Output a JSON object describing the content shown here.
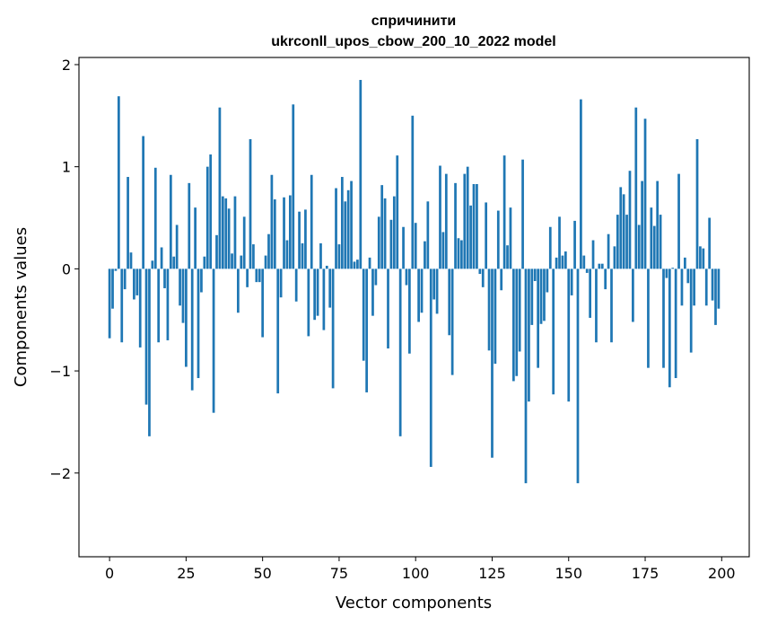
{
  "chart_data": {
    "type": "bar",
    "title": "спричинити",
    "subtitle": "ukrconll_upos_cbow_200_10_2022 model",
    "xlabel": "Vector components",
    "ylabel": "Components values",
    "xlim": [
      -10,
      209
    ],
    "ylim": [
      -2.82,
      2.07
    ],
    "x_ticks": [
      0,
      25,
      50,
      75,
      100,
      125,
      150,
      175,
      200
    ],
    "x_tick_labels": [
      "0",
      "25",
      "50",
      "75",
      "100",
      "125",
      "150",
      "175",
      "200"
    ],
    "y_ticks": [
      -2,
      -1,
      0,
      1,
      2
    ],
    "y_tick_labels": [
      "−2",
      "−1",
      "0",
      "1",
      "2"
    ],
    "grid": false,
    "bar_color": "#1f77b4",
    "x": [
      0,
      1,
      2,
      3,
      4,
      5,
      6,
      7,
      8,
      9,
      10,
      11,
      12,
      13,
      14,
      15,
      16,
      17,
      18,
      19,
      20,
      21,
      22,
      23,
      24,
      25,
      26,
      27,
      28,
      29,
      30,
      31,
      32,
      33,
      34,
      35,
      36,
      37,
      38,
      39,
      40,
      41,
      42,
      43,
      44,
      45,
      46,
      47,
      48,
      49,
      50,
      51,
      52,
      53,
      54,
      55,
      56,
      57,
      58,
      59,
      60,
      61,
      62,
      63,
      64,
      65,
      66,
      67,
      68,
      69,
      70,
      71,
      72,
      73,
      74,
      75,
      76,
      77,
      78,
      79,
      80,
      81,
      82,
      83,
      84,
      85,
      86,
      87,
      88,
      89,
      90,
      91,
      92,
      93,
      94,
      95,
      96,
      97,
      98,
      99,
      100,
      101,
      102,
      103,
      104,
      105,
      106,
      107,
      108,
      109,
      110,
      111,
      112,
      113,
      114,
      115,
      116,
      117,
      118,
      119,
      120,
      121,
      122,
      123,
      124,
      125,
      126,
      127,
      128,
      129,
      130,
      131,
      132,
      133,
      134,
      135,
      136,
      137,
      138,
      139,
      140,
      141,
      142,
      143,
      144,
      145,
      146,
      147,
      148,
      149,
      150,
      151,
      152,
      153,
      154,
      155,
      156,
      157,
      158,
      159,
      160,
      161,
      162,
      163,
      164,
      165,
      166,
      167,
      168,
      169,
      170,
      171,
      172,
      173,
      174,
      175,
      176,
      177,
      178,
      179,
      180,
      181,
      182,
      183,
      184,
      185,
      186,
      187,
      188,
      189,
      190,
      191,
      192,
      193,
      194,
      195,
      196,
      197,
      198,
      199
    ],
    "values": [
      -0.68,
      -0.39,
      -0.02,
      1.69,
      -0.72,
      -0.2,
      0.9,
      0.16,
      -0.3,
      -0.26,
      -0.77,
      1.3,
      -1.33,
      -1.64,
      0.08,
      0.99,
      -0.72,
      0.21,
      -0.19,
      -0.7,
      0.92,
      0.12,
      0.43,
      -0.36,
      -0.53,
      -0.96,
      0.84,
      -1.19,
      0.6,
      -1.07,
      -0.23,
      0.12,
      1.0,
      1.12,
      -1.41,
      0.33,
      1.58,
      0.71,
      0.69,
      0.59,
      0.15,
      0.71,
      -0.43,
      0.13,
      0.51,
      -0.18,
      1.27,
      0.24,
      -0.13,
      -0.13,
      -0.67,
      0.13,
      0.34,
      0.92,
      0.68,
      -1.22,
      -0.28,
      0.7,
      0.28,
      0.72,
      1.61,
      -0.32,
      0.56,
      0.25,
      0.58,
      -0.66,
      0.92,
      -0.5,
      -0.46,
      0.25,
      -0.6,
      0.03,
      -0.38,
      -1.17,
      0.79,
      0.24,
      0.9,
      0.66,
      0.77,
      0.86,
      0.07,
      0.09,
      1.85,
      -0.9,
      -1.21,
      0.11,
      -0.46,
      -0.16,
      0.51,
      0.82,
      0.69,
      -0.78,
      0.48,
      0.71,
      1.11,
      -1.64,
      0.41,
      -0.16,
      -0.83,
      1.5,
      0.45,
      -0.52,
      -0.43,
      0.27,
      0.66,
      -1.94,
      -0.3,
      -0.44,
      1.01,
      0.36,
      0.93,
      -0.65,
      -1.04,
      0.84,
      0.3,
      0.28,
      0.93,
      1.0,
      0.62,
      0.83,
      0.83,
      -0.05,
      -0.18,
      0.65,
      -0.8,
      -1.85,
      -0.93,
      0.57,
      -0.21,
      1.11,
      0.23,
      0.6,
      -1.1,
      -1.05,
      -0.81,
      1.07,
      -2.1,
      -1.3,
      -0.55,
      -0.12,
      -0.97,
      -0.54,
      -0.51,
      -0.23,
      0.41,
      -1.23,
      0.11,
      0.51,
      0.13,
      0.17,
      -1.3,
      -0.26,
      0.47,
      -2.1,
      1.66,
      0.13,
      -0.04,
      -0.48,
      0.28,
      -0.72,
      0.05,
      0.05,
      -0.2,
      0.34,
      -0.72,
      0.22,
      0.53,
      0.8,
      0.73,
      0.53,
      0.96,
      -0.52,
      1.58,
      0.43,
      0.86,
      1.47,
      -0.97,
      0.6,
      0.42,
      0.86,
      0.53,
      -0.97,
      -0.09,
      -1.16,
      0.01,
      -1.07,
      0.93,
      -0.36,
      0.11,
      -0.14,
      -0.82,
      -0.36,
      1.27,
      0.22,
      0.2,
      -0.36,
      0.5,
      -0.31,
      -0.55,
      -0.39
    ]
  }
}
